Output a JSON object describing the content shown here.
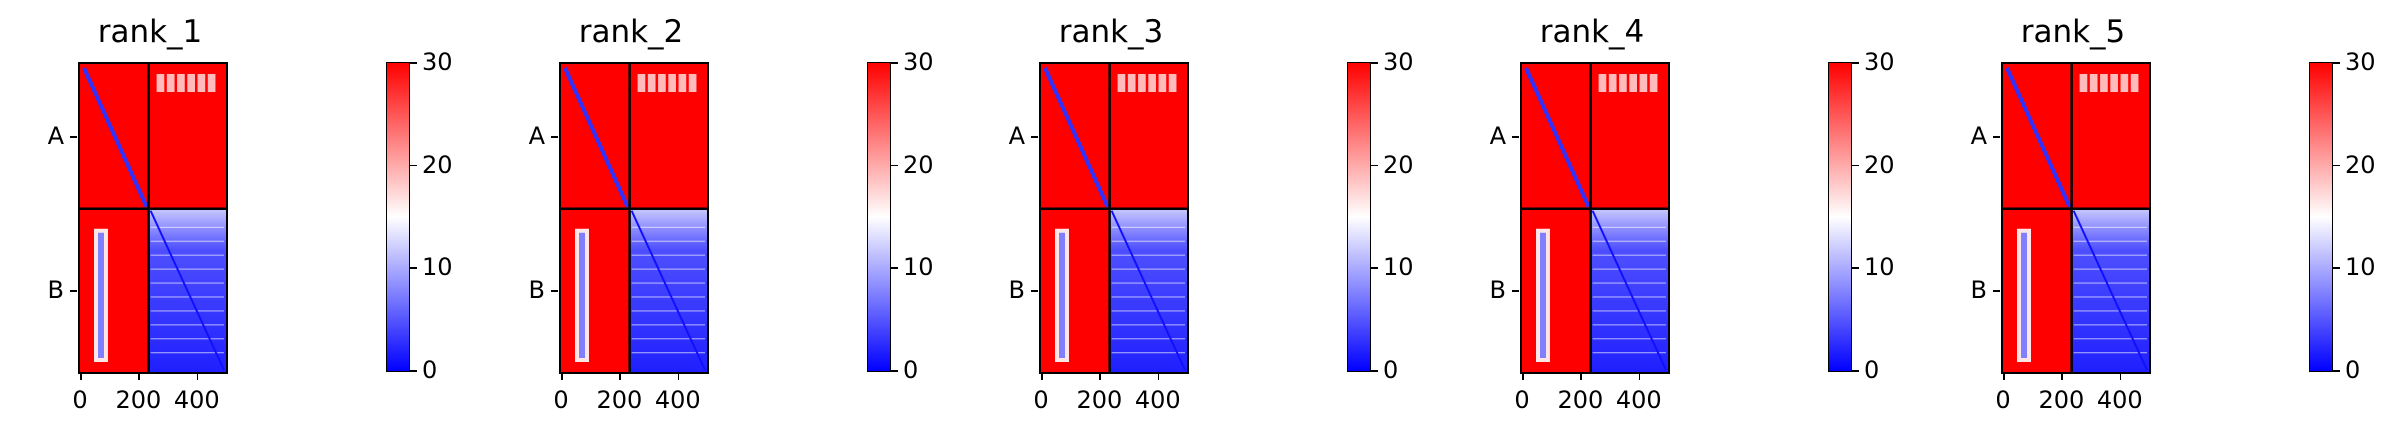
{
  "chart_data": [
    {
      "type": "heatmap",
      "title": "rank_1",
      "x_ticks": [
        0,
        200,
        400
      ],
      "xlim": [
        0,
        500
      ],
      "y_ticks": [
        "A",
        "B"
      ],
      "chain_boundary": 235,
      "colorbar": {
        "ticks": [
          0,
          10,
          20,
          30
        ],
        "range": [
          0,
          30
        ],
        "colors": [
          "#0000ff",
          "#ffffff",
          "#ff0000"
        ]
      },
      "inter_chain_region": "B-B low error (blue), A-B / B-A high error (red)"
    },
    {
      "type": "heatmap",
      "title": "rank_2",
      "x_ticks": [
        0,
        200,
        400
      ],
      "xlim": [
        0,
        500
      ],
      "y_ticks": [
        "A",
        "B"
      ],
      "chain_boundary": 235,
      "colorbar": {
        "ticks": [
          0,
          10,
          20,
          30
        ],
        "range": [
          0,
          30
        ],
        "colors": [
          "#0000ff",
          "#ffffff",
          "#ff0000"
        ]
      }
    },
    {
      "type": "heatmap",
      "title": "rank_3",
      "x_ticks": [
        0,
        200,
        400
      ],
      "xlim": [
        0,
        500
      ],
      "y_ticks": [
        "A",
        "B"
      ],
      "chain_boundary": 235,
      "colorbar": {
        "ticks": [
          0,
          10,
          20,
          30
        ],
        "range": [
          0,
          30
        ],
        "colors": [
          "#0000ff",
          "#ffffff",
          "#ff0000"
        ]
      }
    },
    {
      "type": "heatmap",
      "title": "rank_4",
      "x_ticks": [
        0,
        200,
        400
      ],
      "xlim": [
        0,
        500
      ],
      "y_ticks": [
        "A",
        "B"
      ],
      "chain_boundary": 235,
      "colorbar": {
        "ticks": [
          0,
          10,
          20,
          30
        ],
        "range": [
          0,
          30
        ],
        "colors": [
          "#0000ff",
          "#ffffff",
          "#ff0000"
        ]
      }
    },
    {
      "type": "heatmap",
      "title": "rank_5",
      "x_ticks": [
        0,
        200,
        400
      ],
      "xlim": [
        0,
        500
      ],
      "y_ticks": [
        "A",
        "B"
      ],
      "chain_boundary": 235,
      "colorbar": {
        "ticks": [
          0,
          10,
          20,
          30
        ],
        "range": [
          0,
          30
        ],
        "colors": [
          "#0000ff",
          "#ffffff",
          "#ff0000"
        ]
      }
    }
  ]
}
